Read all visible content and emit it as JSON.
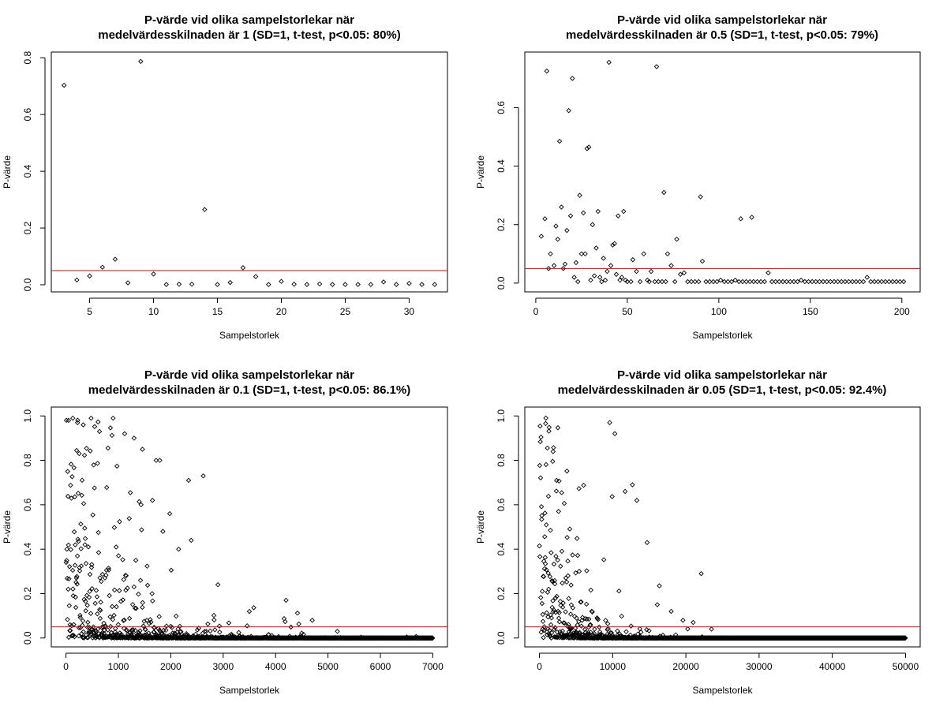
{
  "xlabel": "Sampelstorlek",
  "ylabel": "P-värde",
  "threshold_color": "#e00000",
  "point_color": "#000000",
  "chart_data": [
    {
      "type": "scatter",
      "title_line1": "P-värde vid olika sampelstorlekar när",
      "title_line2": "medelvärdesskilnaden är 1 (SD=1, t-test, p<0.05: 80%)",
      "xlabel": "Sampelstorlek",
      "ylabel": "P-värde",
      "xlim": [
        2,
        33
      ],
      "ylim": [
        -0.025,
        0.82
      ],
      "xticks": [
        5,
        10,
        15,
        20,
        25,
        30
      ],
      "yticks": [
        0.0,
        0.2,
        0.4,
        0.6,
        0.8
      ],
      "threshold": 0.05,
      "points": [
        [
          3,
          0.703
        ],
        [
          4,
          0.017
        ],
        [
          5,
          0.031
        ],
        [
          6,
          0.062
        ],
        [
          7,
          0.09
        ],
        [
          8,
          0.007
        ],
        [
          9,
          0.787
        ],
        [
          10,
          0.038
        ],
        [
          11,
          0.001
        ],
        [
          12,
          0.002
        ],
        [
          13,
          0.002
        ],
        [
          14,
          0.265
        ],
        [
          15,
          0.001
        ],
        [
          16,
          0.008
        ],
        [
          17,
          0.06
        ],
        [
          18,
          0.029
        ],
        [
          19,
          0.001
        ],
        [
          20,
          0.012
        ],
        [
          21,
          0.002
        ],
        [
          22,
          0.001
        ],
        [
          23,
          0.003
        ],
        [
          24,
          0.001
        ],
        [
          25,
          0.001
        ],
        [
          26,
          0.001
        ],
        [
          27,
          0.001
        ],
        [
          28,
          0.01
        ],
        [
          29,
          0.001
        ],
        [
          30,
          0.005
        ],
        [
          31,
          0.001
        ],
        [
          32,
          0.001
        ]
      ]
    },
    {
      "type": "scatter",
      "title_line1": "P-värde vid olika sampelstorlekar när",
      "title_line2": "medelvärdesskilnaden är 0.5 (SD=1, t-test, p<0.05: 79%)",
      "xlabel": "Sampelstorlek",
      "ylabel": "P-värde",
      "xlim": [
        -6,
        210
      ],
      "ylim": [
        -0.03,
        0.79
      ],
      "xticks": [
        0,
        50,
        100,
        150,
        200
      ],
      "yticks": [
        0.0,
        0.2,
        0.4,
        0.6
      ],
      "threshold": 0.05,
      "points": [
        [
          3,
          0.16
        ],
        [
          5,
          0.22
        ],
        [
          6,
          0.725
        ],
        [
          7,
          0.05
        ],
        [
          8,
          0.1
        ],
        [
          10,
          0.06
        ],
        [
          11,
          0.195
        ],
        [
          12,
          0.15
        ],
        [
          13,
          0.485
        ],
        [
          14,
          0.26
        ],
        [
          15,
          0.05
        ],
        [
          16,
          0.065
        ],
        [
          17,
          0.18
        ],
        [
          18,
          0.59
        ],
        [
          19,
          0.23
        ],
        [
          20,
          0.7
        ],
        [
          21,
          0.02
        ],
        [
          22,
          0.07
        ],
        [
          23,
          0.005
        ],
        [
          24,
          0.3
        ],
        [
          25,
          0.1
        ],
        [
          26,
          0.24
        ],
        [
          27,
          0.1
        ],
        [
          28,
          0.46
        ],
        [
          29,
          0.465
        ],
        [
          30,
          0.01
        ],
        [
          31,
          0.2
        ],
        [
          32,
          0.025
        ],
        [
          33,
          0.12
        ],
        [
          34,
          0.245
        ],
        [
          35,
          0.02
        ],
        [
          36,
          0.005
        ],
        [
          37,
          0.085
        ],
        [
          38,
          0.01
        ],
        [
          39,
          0.04
        ],
        [
          40,
          0.755
        ],
        [
          41,
          0.06
        ],
        [
          42,
          0.13
        ],
        [
          43,
          0.135
        ],
        [
          44,
          0.03
        ],
        [
          45,
          0.23
        ],
        [
          46,
          0.01
        ],
        [
          47,
          0.02
        ],
        [
          48,
          0.245
        ],
        [
          49,
          0.01
        ],
        [
          50,
          0.005
        ],
        [
          52,
          0.005
        ],
        [
          53,
          0.08
        ],
        [
          55,
          0.04
        ],
        [
          57,
          0.005
        ],
        [
          59,
          0.1
        ],
        [
          61,
          0.01
        ],
        [
          62,
          0.005
        ],
        [
          63,
          0.04
        ],
        [
          65,
          0.005
        ],
        [
          66,
          0.74
        ],
        [
          67,
          0.005
        ],
        [
          69,
          0.005
        ],
        [
          70,
          0.31
        ],
        [
          71,
          0.005
        ],
        [
          72,
          0.1
        ],
        [
          74,
          0.06
        ],
        [
          76,
          0.005
        ],
        [
          77,
          0.15
        ],
        [
          79,
          0.03
        ],
        [
          81,
          0.035
        ],
        [
          83,
          0.005
        ],
        [
          85,
          0.005
        ],
        [
          87,
          0.005
        ],
        [
          89,
          0.005
        ],
        [
          90,
          0.295
        ],
        [
          91,
          0.075
        ],
        [
          93,
          0.005
        ],
        [
          95,
          0.005
        ],
        [
          97,
          0.005
        ],
        [
          99,
          0.005
        ],
        [
          101,
          0.01
        ],
        [
          103,
          0.005
        ],
        [
          105,
          0.005
        ],
        [
          107,
          0.005
        ],
        [
          109,
          0.01
        ],
        [
          111,
          0.005
        ],
        [
          112,
          0.22
        ],
        [
          113,
          0.005
        ],
        [
          115,
          0.005
        ],
        [
          117,
          0.005
        ],
        [
          118,
          0.225
        ],
        [
          119,
          0.005
        ],
        [
          121,
          0.005
        ],
        [
          123,
          0.005
        ],
        [
          125,
          0.005
        ],
        [
          127,
          0.035
        ],
        [
          129,
          0.005
        ],
        [
          131,
          0.005
        ],
        [
          133,
          0.005
        ],
        [
          135,
          0.005
        ],
        [
          137,
          0.005
        ],
        [
          139,
          0.005
        ],
        [
          141,
          0.005
        ],
        [
          143,
          0.005
        ],
        [
          145,
          0.01
        ],
        [
          147,
          0.005
        ],
        [
          149,
          0.005
        ],
        [
          151,
          0.005
        ],
        [
          153,
          0.005
        ],
        [
          155,
          0.005
        ],
        [
          157,
          0.005
        ],
        [
          159,
          0.005
        ],
        [
          161,
          0.005
        ],
        [
          163,
          0.005
        ],
        [
          165,
          0.005
        ],
        [
          167,
          0.005
        ],
        [
          169,
          0.005
        ],
        [
          171,
          0.005
        ],
        [
          173,
          0.005
        ],
        [
          175,
          0.005
        ],
        [
          177,
          0.005
        ],
        [
          179,
          0.005
        ],
        [
          181,
          0.02
        ],
        [
          183,
          0.005
        ],
        [
          185,
          0.005
        ],
        [
          187,
          0.005
        ],
        [
          189,
          0.005
        ],
        [
          191,
          0.005
        ],
        [
          193,
          0.005
        ],
        [
          195,
          0.005
        ],
        [
          197,
          0.005
        ],
        [
          199,
          0.005
        ],
        [
          201,
          0.005
        ]
      ]
    },
    {
      "type": "scatter",
      "title_line1": "P-värde vid olika sampelstorlekar när",
      "title_line2": "medelvärdesskilnaden är 0.1 (SD=1, t-test, p<0.05: 86.1%)",
      "xlabel": "Sampelstorlek",
      "ylabel": "P-värde",
      "xlim": [
        -280,
        7280
      ],
      "ylim": [
        -0.04,
        1.04
      ],
      "xticks": [
        0,
        1000,
        2000,
        3000,
        4000,
        5000,
        6000,
        7000
      ],
      "yticks": [
        0.0,
        0.2,
        0.4,
        0.6,
        0.8,
        1.0
      ],
      "threshold": 0.05,
      "n_min": 3,
      "n_max": 7000,
      "effect_size": 0.1,
      "step": 5,
      "points": [
        [
          50,
          0.98
        ],
        [
          130,
          0.99
        ],
        [
          220,
          0.97
        ],
        [
          330,
          0.96
        ],
        [
          480,
          0.99
        ],
        [
          640,
          0.93
        ],
        [
          900,
          0.99
        ],
        [
          1120,
          0.92
        ],
        [
          1300,
          0.9
        ],
        [
          1460,
          0.85
        ],
        [
          1720,
          0.8
        ],
        [
          1790,
          0.8
        ],
        [
          1980,
          0.56
        ],
        [
          2340,
          0.71
        ],
        [
          2620,
          0.73
        ],
        [
          2390,
          0.44
        ],
        [
          2900,
          0.24
        ],
        [
          3500,
          0.12
        ],
        [
          4200,
          0.17
        ],
        [
          4700,
          0.08
        ],
        [
          5180,
          0.03
        ],
        [
          1650,
          0.62
        ],
        [
          1850,
          0.48
        ],
        [
          2150,
          0.4
        ]
      ]
    },
    {
      "type": "scatter",
      "title_line1": "P-värde vid olika sampelstorlekar när",
      "title_line2": "medelvärdesskilnaden är 0.05 (SD=1, t-test, p<0.05: 92.4%)",
      "xlabel": "Sampelstorlek",
      "ylabel": "P-värde",
      "xlim": [
        -2000,
        52000
      ],
      "ylim": [
        -0.04,
        1.04
      ],
      "xticks": [
        0,
        10000,
        20000,
        30000,
        40000,
        50000
      ],
      "yticks": [
        0.0,
        0.2,
        0.4,
        0.6,
        0.8,
        1.0
      ],
      "threshold": 0.05,
      "n_min": 3,
      "n_max": 50000,
      "effect_size": 0.05,
      "step": 30,
      "points": [
        [
          9600,
          0.97
        ],
        [
          10300,
          0.92
        ],
        [
          11700,
          0.66
        ],
        [
          12700,
          0.69
        ],
        [
          13300,
          0.62
        ],
        [
          14700,
          0.43
        ],
        [
          22100,
          0.29
        ],
        [
          16100,
          0.15
        ],
        [
          18000,
          0.12
        ],
        [
          19600,
          0.08
        ],
        [
          21000,
          0.07
        ],
        [
          23500,
          0.04
        ]
      ]
    }
  ]
}
